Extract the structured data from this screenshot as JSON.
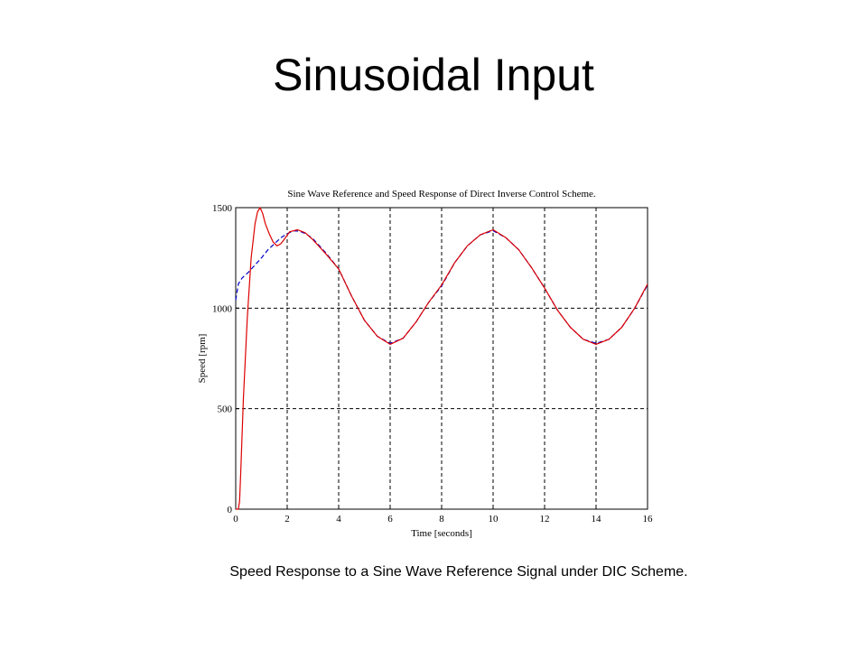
{
  "slide": {
    "title": "Sinusoidal Input",
    "caption": "Speed Response to a Sine Wave Reference Signal under DIC Scheme."
  },
  "chart_data": {
    "type": "line",
    "title": "Sine Wave Reference and Speed Response of Direct Inverse Control Scheme.",
    "xlabel": "Time [seconds]",
    "ylabel": "Speed [rpm]",
    "xlim": [
      0,
      16
    ],
    "ylim": [
      0,
      1500
    ],
    "xticks": [
      0,
      2,
      4,
      6,
      8,
      10,
      12,
      14,
      16
    ],
    "yticks": [
      0,
      500,
      1000,
      1500
    ],
    "grid": true,
    "legend": "none",
    "series": [
      {
        "color": "#0000cc",
        "style": "dashed",
        "x": [
          0,
          0.1,
          0.25,
          0.5,
          0.75,
          1.0,
          1.25,
          1.5,
          1.75,
          2.0,
          2.25,
          2.5,
          2.75,
          3.0,
          3.5,
          4.0,
          4.5,
          5.0,
          5.5,
          6.0,
          6.5,
          7.0,
          7.5,
          8.0,
          8.5,
          9.0,
          9.5,
          10.0,
          10.5,
          11.0,
          11.5,
          12.0,
          12.5,
          13.0,
          13.5,
          14.0,
          14.5,
          15.0,
          15.5,
          16.0
        ],
        "y": [
          1040,
          1120,
          1150,
          1180,
          1215,
          1250,
          1290,
          1320,
          1350,
          1370,
          1385,
          1382,
          1368,
          1345,
          1275,
          1195,
          1060,
          940,
          860,
          825,
          850,
          930,
          1030,
          1110,
          1225,
          1310,
          1365,
          1385,
          1350,
          1290,
          1200,
          1100,
          990,
          905,
          845,
          825,
          845,
          905,
          1000,
          1115
        ]
      },
      {
        "color": "#dd0000",
        "style": "solid",
        "x": [
          0,
          0.1,
          0.15,
          0.2,
          0.3,
          0.45,
          0.6,
          0.75,
          0.85,
          0.95,
          1.05,
          1.15,
          1.3,
          1.45,
          1.6,
          1.75,
          1.9,
          2.1,
          2.4,
          2.7,
          3.0,
          3.5,
          4.0,
          4.5,
          5.0,
          5.5,
          6.0,
          6.5,
          7.0,
          7.5,
          8.0,
          8.5,
          9.0,
          9.5,
          10.0,
          10.5,
          11.0,
          11.5,
          12.0,
          12.5,
          13.0,
          13.5,
          14.0,
          14.5,
          15.0,
          15.5,
          16.0
        ],
        "y": [
          0,
          0,
          40,
          200,
          550,
          950,
          1250,
          1420,
          1480,
          1500,
          1470,
          1420,
          1370,
          1330,
          1310,
          1320,
          1345,
          1380,
          1390,
          1375,
          1340,
          1270,
          1195,
          1060,
          940,
          860,
          820,
          850,
          930,
          1030,
          1115,
          1225,
          1310,
          1365,
          1390,
          1350,
          1290,
          1200,
          1100,
          990,
          905,
          845,
          820,
          845,
          905,
          1000,
          1120
        ]
      }
    ]
  }
}
